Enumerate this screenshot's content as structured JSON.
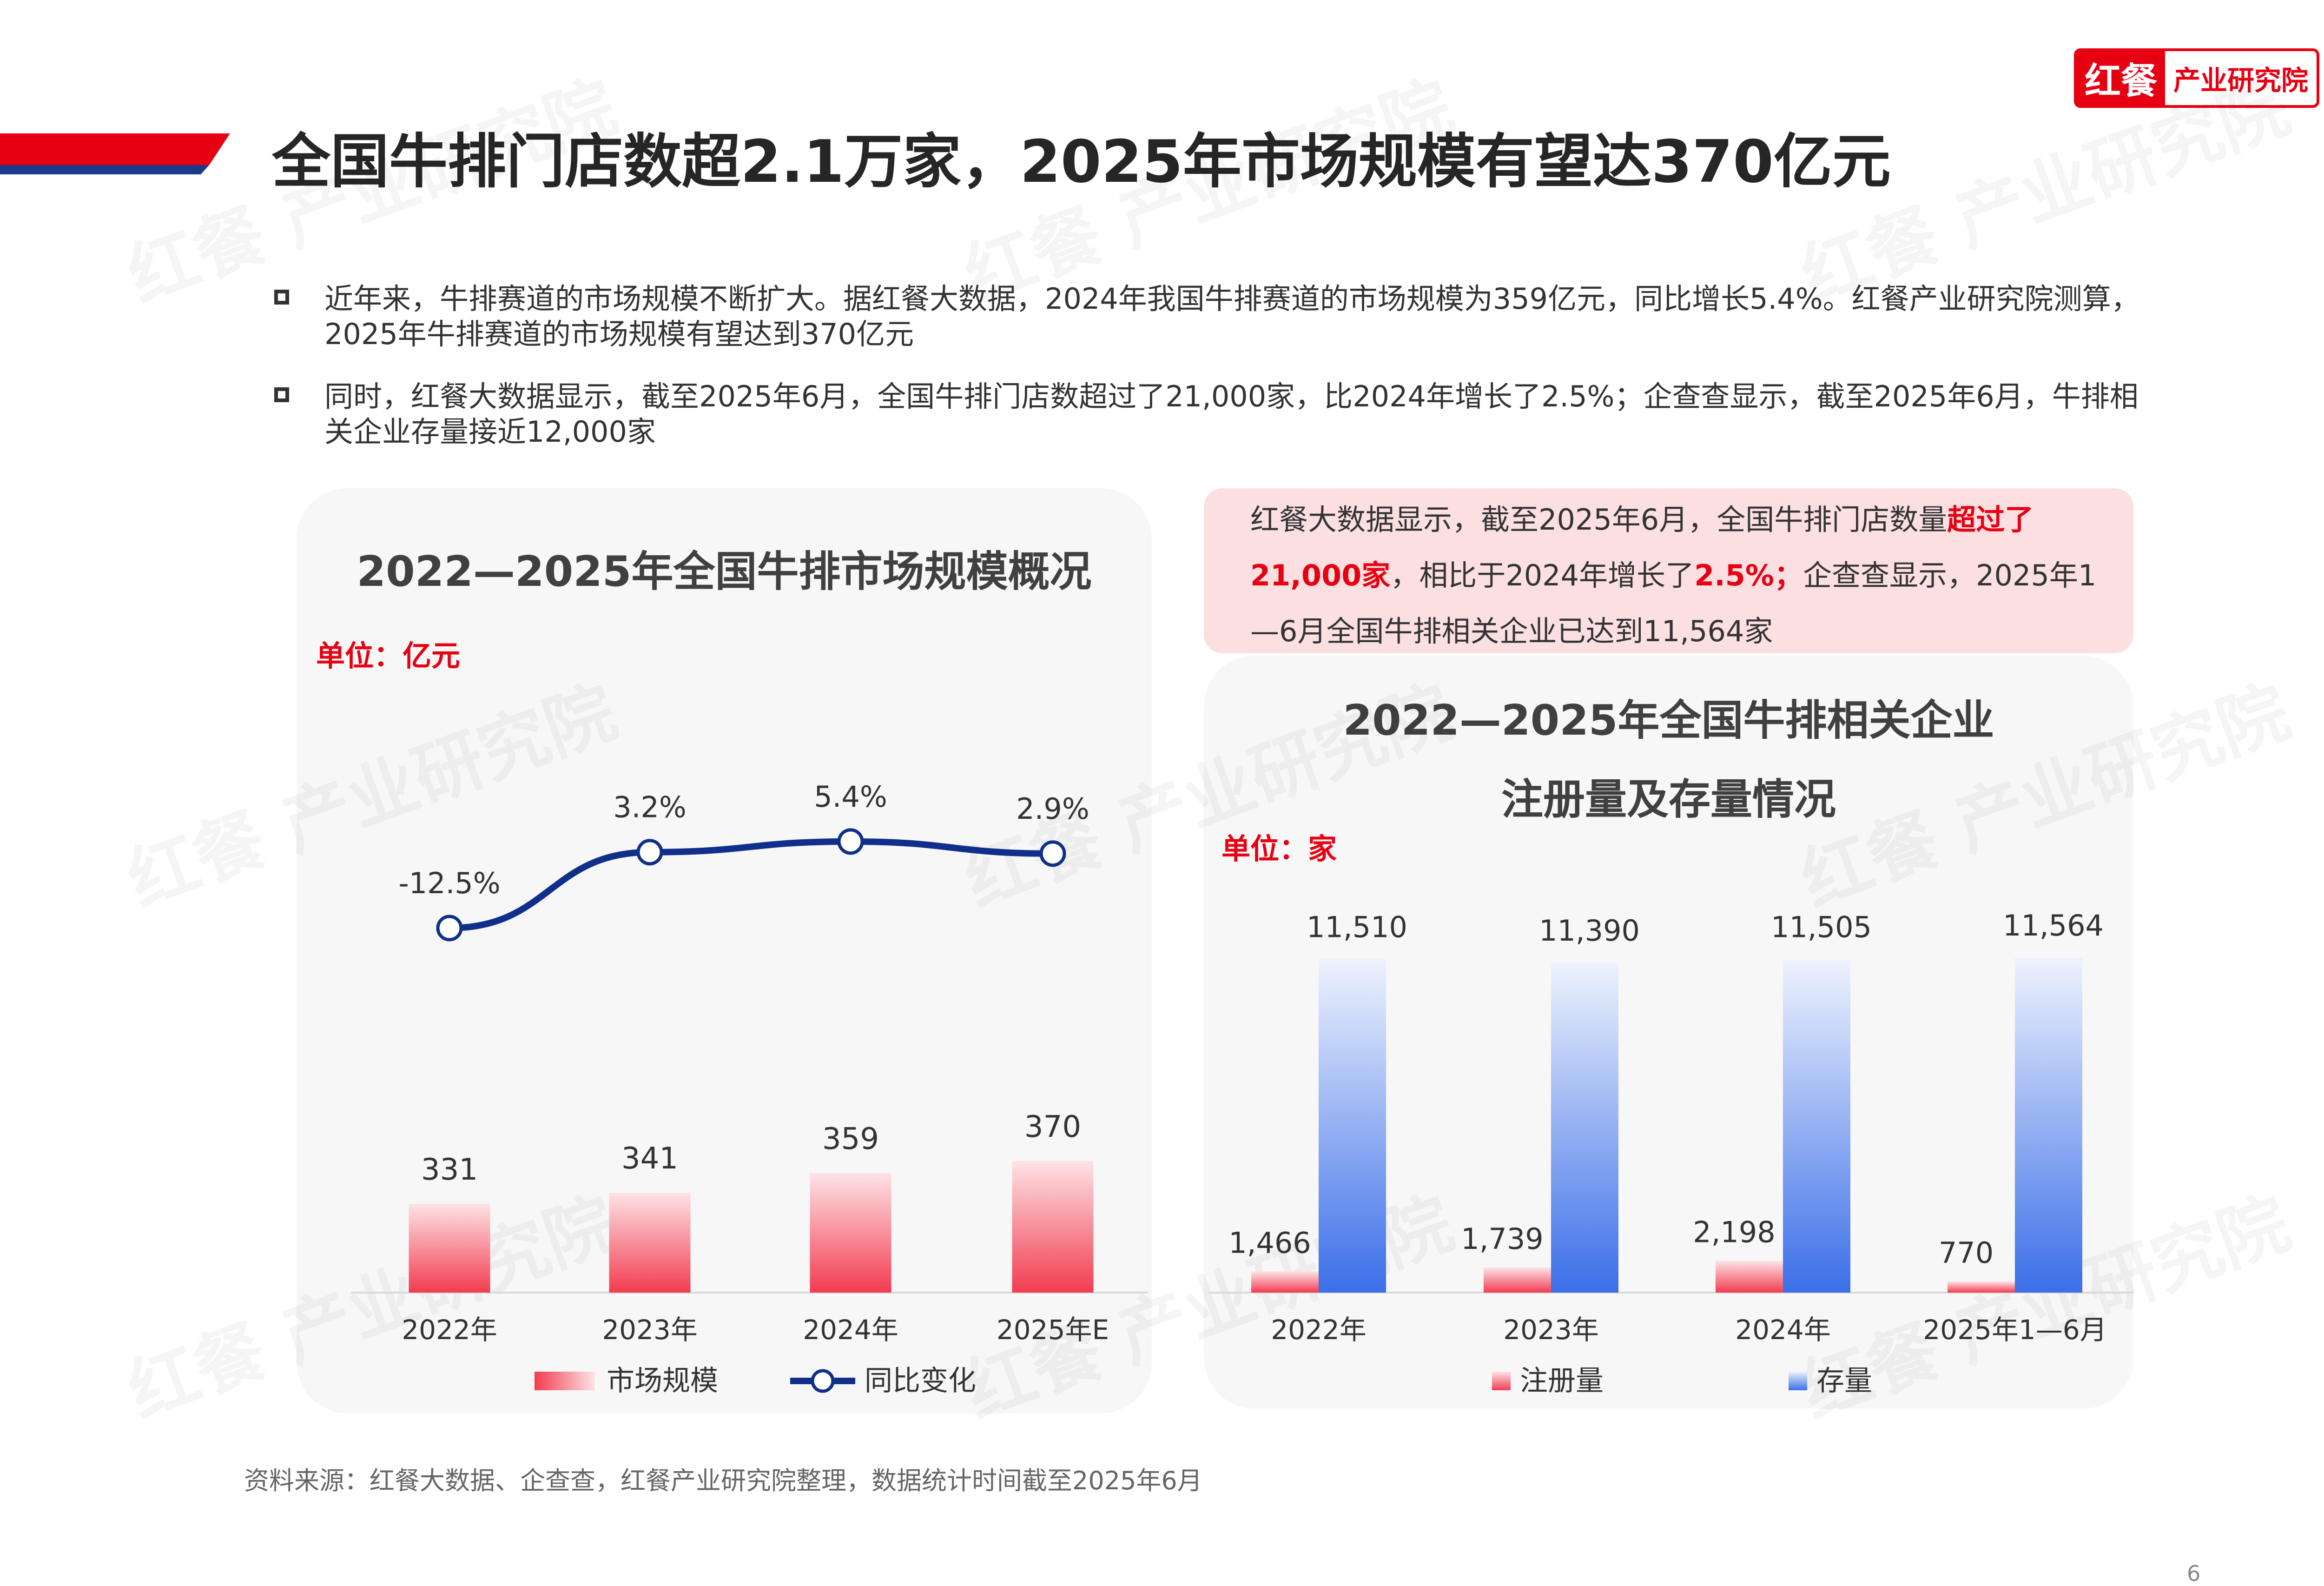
{
  "brand": {
    "mark": "红餐",
    "name": "产业研究院",
    "accent": "#e60012",
    "secondary": "#1b3a8c"
  },
  "page": {
    "title": "全国牛排门店数超2.1万家，2025年市场规模有望达370亿元",
    "number": "6",
    "bullets": [
      "近年来，牛排赛道的市场规模不断扩大。据红餐大数据，2024年我国牛排赛道的市场规模为359亿元，同比增长5.4%。红餐产业研究院测算，2025年牛排赛道的市场规模有望达到370亿元",
      "同时，红餐大数据显示，截至2025年6月，全国牛排门店数超过了21,000家，比2024年增长了2.5%；企查查显示，截至2025年6月，牛排相关企业存量接近12,000家"
    ],
    "highlight": {
      "p1": "红餐大数据显示，截至2025年6月，全国牛排门店数量",
      "em1": "超过了21,000家",
      "p2": "，相比于2024年增长了",
      "em2": "2.5%；",
      "p3": "企查查显示，2025年1—6月全国牛排相关企业已达到11,564家"
    },
    "source": "资料来源：红餐大数据、企查查，红餐产业研究院整理，数据统计时间截至2025年6月",
    "watermark": "红餐 产业研究院"
  },
  "chart_data": [
    {
      "type": "bar",
      "title": "2022—2025年全国牛排市场规模概况",
      "unit": "单位：亿元",
      "categories": [
        "2022年",
        "2023年",
        "2024年",
        "2025年E"
      ],
      "series": [
        {
          "name": "市场规模",
          "type": "bar",
          "values": [
            331,
            341,
            359,
            370
          ],
          "labels": [
            "331",
            "341",
            "359",
            "370"
          ],
          "color": "#f23c50"
        },
        {
          "name": "同比变化",
          "type": "line",
          "values": [
            -12.5,
            3.2,
            5.4,
            2.9
          ],
          "labels": [
            "-12.5%",
            "3.2%",
            "5.4%",
            "2.9%"
          ],
          "color": "#0f2f8a"
        }
      ],
      "legend": "bottom"
    },
    {
      "type": "bar",
      "title": "2022—2025年全国牛排相关企业注册量及存量情况",
      "title_lines": [
        "2022—2025年全国牛排相关企业",
        "注册量及存量情况"
      ],
      "unit": "单位：家",
      "categories": [
        "2022年",
        "2023年",
        "2024年",
        "2025年1—6月"
      ],
      "series": [
        {
          "name": "注册量",
          "values": [
            1466,
            1739,
            2198,
            770
          ],
          "labels": [
            "1,466",
            "1,739",
            "2,198",
            "770"
          ],
          "color": "#f23c50"
        },
        {
          "name": "存量",
          "values": [
            11510,
            11390,
            11505,
            11564
          ],
          "labels": [
            "11,510",
            "11,390",
            "11,505",
            "11,564"
          ],
          "color": "#3b6fe8"
        }
      ],
      "legend": "bottom"
    }
  ]
}
